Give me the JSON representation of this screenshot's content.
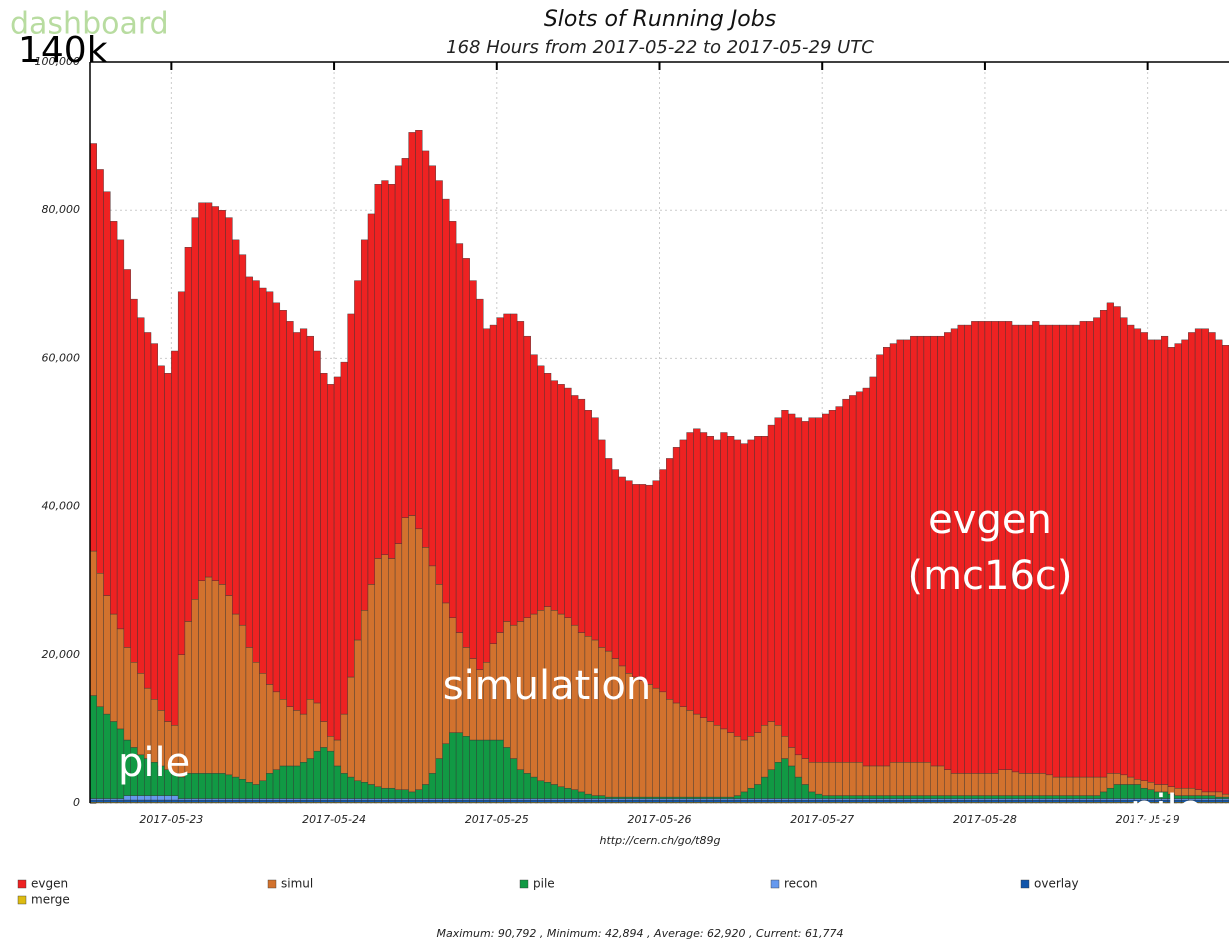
{
  "chart_data": {
    "type": "stacked_bar",
    "logo": "dashboard",
    "title": "Slots of Running Jobs",
    "subtitle": "168 Hours from 2017-05-22 to 2017-05-29 UTC",
    "source": "http://cern.ch/go/t89g",
    "stats": "Maximum: 90,792 , Minimum: 42,894 , Average: 62,920 , Current: 61,774",
    "annotations": [
      "140k",
      "pile",
      "simulation",
      "evgen",
      "(mc16c)",
      "pile"
    ],
    "ylim": [
      0,
      100000
    ],
    "yticks": [
      0,
      {
        "value": 20000,
        "label": "20,000"
      },
      {
        "value": 40000,
        "label": "40,000"
      },
      {
        "value": 60000,
        "label": "60,000"
      },
      {
        "value": 80000,
        "label": "80,000"
      },
      {
        "value": 100000,
        "label": "100,000"
      }
    ],
    "xticks": [
      "2017-05-23",
      "2017-05-24",
      "2017-05-25",
      "2017-05-26",
      "2017-05-27",
      "2017-05-28",
      "2017-05-29"
    ],
    "grid": true,
    "series": [
      {
        "name": "evgen",
        "color": "#ee2222",
        "values": [
          55000,
          54500,
          54500,
          53000,
          52500,
          51000,
          49000,
          48000,
          48000,
          48000,
          46500,
          47000,
          50500,
          49000,
          50500,
          51500,
          51000,
          50500,
          50500,
          50500,
          51000,
          50500,
          50000,
          50000,
          51500,
          52000,
          53000,
          52500,
          52500,
          52000,
          51000,
          52000,
          49000,
          47500,
          47000,
          47500,
          49000,
          47500,
          49000,
          48500,
          50000,
          50000,
          50500,
          50500,
          50500,
          51000,
          48500,
          51700,
          53792,
          53500,
          54000,
          54500,
          54500,
          53500,
          52500,
          52500,
          51000,
          50000,
          45000,
          43000,
          42500,
          41500,
          42000,
          40500,
          38000,
          35000,
          33000,
          31500,
          31000,
          31000,
          31000,
          31000,
          31500,
          30500,
          30000,
          28000,
          26000,
          25500,
          25500,
          26000,
          26000,
          26500,
          26894,
          28000,
          30000,
          32500,
          34500,
          36000,
          37500,
          38500,
          38500,
          38500,
          38500,
          40000,
          40000,
          40000,
          40000,
          40000,
          40000,
          39000,
          40000,
          41500,
          44000,
          45000,
          45500,
          45500,
          46500,
          46500,
          47000,
          47500,
          48000,
          49000,
          49500,
          50000,
          51000,
          52500,
          55500,
          56500,
          56500,
          57000,
          57000,
          57500,
          57500,
          57500,
          58000,
          58000,
          59000,
          60000,
          60500,
          60500,
          61000,
          61000,
          61000,
          61000,
          60500,
          60500,
          60300,
          60500,
          60500,
          61000,
          60500,
          60700,
          61000,
          61000,
          61000,
          61000,
          61500,
          61500,
          62000,
          63000,
          63500,
          63000,
          61700,
          61000,
          60800,
          60500,
          59700,
          60000,
          60500,
          59300,
          60000,
          60500,
          61500,
          62200,
          62500,
          62000,
          61000,
          60574
        ]
      },
      {
        "name": "simul",
        "color": "#d2722e",
        "values": [
          19500,
          18000,
          16000,
          14500,
          13500,
          12500,
          11500,
          11000,
          9500,
          8500,
          7500,
          6500,
          6500,
          16500,
          20500,
          23500,
          26000,
          26500,
          26000,
          25500,
          24200,
          22000,
          20800,
          18200,
          16500,
          14500,
          12000,
          10500,
          9000,
          8000,
          7500,
          6500,
          8000,
          6500,
          3500,
          2000,
          3500,
          8000,
          13500,
          19000,
          23200,
          27000,
          30800,
          31500,
          31000,
          33200,
          36700,
          37300,
          35200,
          32000,
          28000,
          23500,
          19000,
          15500,
          13500,
          12000,
          11000,
          9500,
          10500,
          13000,
          14500,
          17000,
          18000,
          20000,
          21000,
          22000,
          23000,
          23700,
          23500,
          23300,
          23000,
          22200,
          21500,
          21300,
          21000,
          20000,
          19700,
          18700,
          17700,
          16700,
          16200,
          15700,
          15200,
          14700,
          14200,
          13200,
          12700,
          12200,
          11700,
          11200,
          10700,
          10200,
          9700,
          9200,
          8700,
          8000,
          7000,
          7000,
          7000,
          7000,
          6500,
          5000,
          3000,
          2500,
          3000,
          3500,
          4000,
          4300,
          4500,
          4500,
          4500,
          4500,
          4500,
          4500,
          4000,
          4000,
          4000,
          4000,
          4500,
          4500,
          4500,
          4500,
          4500,
          4500,
          4000,
          4000,
          3500,
          3000,
          3000,
          3000,
          3000,
          3000,
          3000,
          3000,
          3500,
          3500,
          3200,
          3000,
          3000,
          3000,
          3000,
          2800,
          2500,
          2500,
          2500,
          2500,
          2500,
          2500,
          2500,
          2000,
          2000,
          1500,
          1300,
          1000,
          700,
          1000,
          1000,
          1000,
          1000,
          1000,
          1000,
          1000,
          1000,
          800,
          500,
          500,
          700,
          400
        ]
      },
      {
        "name": "pile",
        "color": "#119944",
        "values": [
          13900,
          12400,
          11400,
          10400,
          9400,
          7500,
          6500,
          5500,
          5000,
          4500,
          4000,
          3500,
          3000,
          2900,
          3400,
          3400,
          3400,
          3400,
          3400,
          3400,
          3200,
          2900,
          2600,
          2200,
          1900,
          2400,
          3400,
          3900,
          4400,
          4400,
          4400,
          4900,
          5400,
          6400,
          6900,
          6400,
          4400,
          3400,
          2900,
          2400,
          2200,
          1900,
          1600,
          1400,
          1400,
          1200,
          1200,
          900,
          1200,
          1900,
          3400,
          5400,
          7400,
          8900,
          8900,
          8400,
          7900,
          7900,
          7900,
          7900,
          7900,
          6900,
          5400,
          3900,
          3400,
          2900,
          2400,
          2200,
          1900,
          1600,
          1400,
          1200,
          900,
          600,
          400,
          400,
          200,
          200,
          200,
          200,
          200,
          200,
          200,
          200,
          200,
          200,
          200,
          200,
          200,
          200,
          200,
          200,
          200,
          200,
          200,
          400,
          900,
          1400,
          1900,
          2900,
          3900,
          4900,
          5400,
          4400,
          2900,
          1900,
          900,
          600,
          400,
          400,
          400,
          400,
          400,
          400,
          400,
          400,
          400,
          400,
          400,
          400,
          400,
          400,
          400,
          400,
          400,
          400,
          400,
          400,
          400,
          400,
          400,
          400,
          400,
          400,
          400,
          400,
          400,
          400,
          400,
          400,
          400,
          400,
          400,
          400,
          400,
          400,
          400,
          400,
          400,
          900,
          1400,
          1900,
          1900,
          1900,
          1900,
          1400,
          1200,
          900,
          900,
          600,
          400,
          400,
          400,
          400,
          400,
          400,
          200,
          200
        ]
      },
      {
        "name": "recon",
        "color": "#6699ee",
        "values": [
          200,
          200,
          200,
          200,
          200,
          600,
          600,
          600,
          600,
          600,
          600,
          600,
          600,
          200,
          200,
          200,
          200,
          200,
          200,
          200,
          200,
          200,
          200,
          200,
          200,
          200,
          200,
          200,
          200,
          200,
          200,
          200,
          200,
          200,
          200,
          200,
          200,
          200,
          200,
          200,
          200,
          200,
          200,
          200,
          200,
          200,
          200,
          200,
          200,
          200,
          200,
          200,
          200,
          200,
          200,
          200,
          200,
          200,
          200,
          200,
          200,
          200,
          200,
          200,
          200,
          200,
          200,
          200,
          200,
          200,
          200,
          200,
          200,
          200,
          200,
          200,
          200,
          200,
          200,
          200,
          200,
          200,
          200,
          200,
          200,
          200,
          200,
          200,
          200,
          200,
          200,
          200,
          200,
          200,
          200,
          200,
          200,
          200,
          200,
          200,
          200,
          200,
          200,
          200,
          200,
          200,
          200,
          200,
          200,
          200,
          200,
          200,
          200,
          200,
          200,
          200,
          200,
          200,
          200,
          200,
          200,
          200,
          200,
          200,
          200,
          200,
          200,
          200,
          200,
          200,
          200,
          200,
          200,
          200,
          200,
          200,
          200,
          200,
          200,
          200,
          200,
          200,
          200,
          200,
          200,
          200,
          200,
          200,
          200,
          200,
          200,
          200,
          200,
          200,
          200,
          200,
          200,
          200,
          200,
          200,
          200,
          200,
          200,
          200,
          200,
          200,
          200,
          200
        ]
      },
      {
        "name": "overlay",
        "color": "#1155aa",
        "values": [
          300,
          300,
          300,
          300,
          300,
          300,
          300,
          300,
          300,
          300,
          300,
          300,
          300,
          300,
          300,
          300,
          300,
          300,
          300,
          300,
          300,
          300,
          300,
          300,
          300,
          300,
          300,
          300,
          300,
          300,
          300,
          300,
          300,
          300,
          300,
          300,
          300,
          300,
          300,
          300,
          300,
          300,
          300,
          300,
          300,
          300,
          300,
          300,
          300,
          300,
          300,
          300,
          300,
          300,
          300,
          300,
          300,
          300,
          300,
          300,
          300,
          300,
          300,
          300,
          300,
          300,
          300,
          300,
          300,
          300,
          300,
          300,
          300,
          300,
          300,
          300,
          300,
          300,
          300,
          300,
          300,
          300,
          300,
          300,
          300,
          300,
          300,
          300,
          300,
          300,
          300,
          300,
          300,
          300,
          300,
          300,
          300,
          300,
          300,
          300,
          300,
          300,
          300,
          300,
          300,
          300,
          300,
          300,
          300,
          300,
          300,
          300,
          300,
          300,
          300,
          300,
          300,
          300,
          300,
          300,
          300,
          300,
          300,
          300,
          300,
          300,
          300,
          300,
          300,
          300,
          300,
          300,
          300,
          300,
          300,
          300,
          300,
          300,
          300,
          300,
          300,
          300,
          300,
          300,
          300,
          300,
          300,
          300,
          300,
          300,
          300,
          300,
          300,
          300,
          300,
          300,
          300,
          300,
          300,
          300,
          300,
          300,
          300,
          300,
          300,
          300,
          300,
          300
        ]
      },
      {
        "name": "merge",
        "color": "#ddbb11",
        "values": [
          100,
          100,
          100,
          100,
          100,
          100,
          100,
          100,
          100,
          100,
          100,
          100,
          100,
          100,
          100,
          100,
          100,
          100,
          100,
          100,
          100,
          100,
          100,
          100,
          100,
          100,
          100,
          100,
          100,
          100,
          100,
          100,
          100,
          100,
          100,
          100,
          100,
          100,
          100,
          100,
          100,
          100,
          100,
          100,
          100,
          100,
          100,
          100,
          100,
          100,
          100,
          100,
          100,
          100,
          100,
          100,
          100,
          100,
          100,
          100,
          100,
          100,
          100,
          100,
          100,
          100,
          100,
          100,
          100,
          100,
          100,
          100,
          100,
          100,
          100,
          100,
          100,
          100,
          100,
          100,
          100,
          100,
          100,
          100,
          100,
          100,
          100,
          100,
          100,
          100,
          100,
          100,
          100,
          100,
          100,
          100,
          100,
          100,
          100,
          100,
          100,
          100,
          100,
          100,
          100,
          100,
          100,
          100,
          100,
          100,
          100,
          100,
          100,
          100,
          100,
          100,
          100,
          100,
          100,
          100,
          100,
          100,
          100,
          100,
          100,
          100,
          100,
          100,
          100,
          100,
          100,
          100,
          100,
          100,
          100,
          100,
          100,
          100,
          100,
          100,
          100,
          100,
          100,
          100,
          100,
          100,
          100,
          100,
          100,
          100,
          100,
          100,
          100,
          100,
          100,
          100,
          100,
          100,
          100,
          100,
          100,
          100,
          100,
          100,
          100,
          100,
          100,
          100
        ]
      }
    ]
  }
}
